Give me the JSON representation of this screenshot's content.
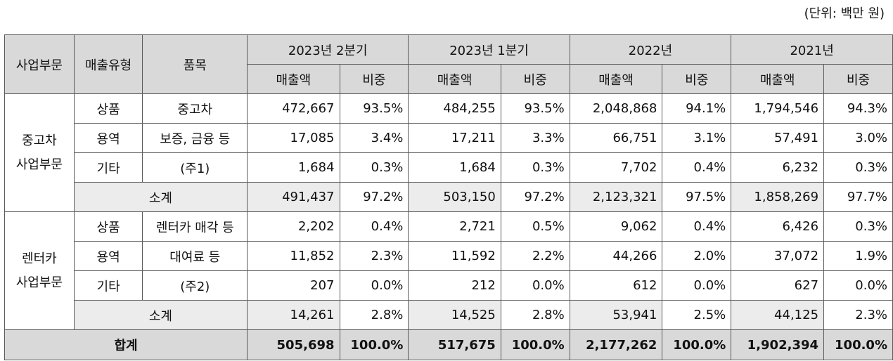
{
  "unit_note": "(단위: 백만 원)",
  "header": {
    "segment": "사업부문",
    "sales_type": "매출유형",
    "item": "품목",
    "periods": [
      "2023년 2분기",
      "2023년 1분기",
      "2022년",
      "2021년"
    ],
    "sales": "매출액",
    "share": "비중"
  },
  "sections": [
    {
      "name": "중고차\n사업부문",
      "rows": [
        {
          "type": "상품",
          "item": "중고차",
          "cells": [
            [
              "472,667",
              "93.5%"
            ],
            [
              "484,255",
              "93.5%"
            ],
            [
              "2,048,868",
              "94.1%"
            ],
            [
              "1,794,546",
              "94.3%"
            ]
          ]
        },
        {
          "type": "용역",
          "item": "보증, 금융 등",
          "cells": [
            [
              "17,085",
              "3.4%"
            ],
            [
              "17,211",
              "3.3%"
            ],
            [
              "66,751",
              "3.1%"
            ],
            [
              "57,491",
              "3.0%"
            ]
          ]
        },
        {
          "type": "기타",
          "item": "(주1)",
          "cells": [
            [
              "1,684",
              "0.3%"
            ],
            [
              "1,684",
              "0.3%"
            ],
            [
              "7,702",
              "0.4%"
            ],
            [
              "6,232",
              "0.3%"
            ]
          ]
        }
      ],
      "subtotal": {
        "label": "소계",
        "cells": [
          [
            "491,437",
            "97.2%"
          ],
          [
            "503,150",
            "97.2%"
          ],
          [
            "2,123,321",
            "97.5%"
          ],
          [
            "1,858,269",
            "97.7%"
          ]
        ]
      }
    },
    {
      "name": "렌터카\n사업부문",
      "rows": [
        {
          "type": "상품",
          "item": "렌터카 매각 등",
          "cells": [
            [
              "2,202",
              "0.4%"
            ],
            [
              "2,721",
              "0.5%"
            ],
            [
              "9,062",
              "0.4%"
            ],
            [
              "6,426",
              "0.3%"
            ]
          ]
        },
        {
          "type": "용역",
          "item": "대여료 등",
          "cells": [
            [
              "11,852",
              "2.3%"
            ],
            [
              "11,592",
              "2.2%"
            ],
            [
              "44,266",
              "2.0%"
            ],
            [
              "37,072",
              "1.9%"
            ]
          ]
        },
        {
          "type": "기타",
          "item": "(주2)",
          "cells": [
            [
              "207",
              "0.0%"
            ],
            [
              "212",
              "0.0%"
            ],
            [
              "612",
              "0.0%"
            ],
            [
              "627",
              "0.0%"
            ]
          ]
        }
      ],
      "subtotal": {
        "label": "소계",
        "cells": [
          [
            "14,261",
            "2.8%"
          ],
          [
            "14,525",
            "2.8%"
          ],
          [
            "53,941",
            "2.5%"
          ],
          [
            "44,125",
            "2.3%"
          ]
        ]
      }
    }
  ],
  "total": {
    "label": "합계",
    "cells": [
      [
        "505,698",
        "100.0%"
      ],
      [
        "517,675",
        "100.0%"
      ],
      [
        "2,177,262",
        "100.0%"
      ],
      [
        "1,902,394",
        "100.0%"
      ]
    ]
  }
}
